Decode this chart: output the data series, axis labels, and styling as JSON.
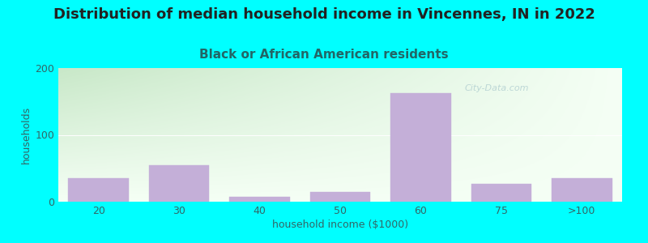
{
  "title": "Distribution of median household income in Vincennes, IN in 2022",
  "subtitle": "Black or African American residents",
  "xlabel": "household income ($1000)",
  "ylabel": "households",
  "background_color": "#00FFFF",
  "bar_color": "#c4afd8",
  "bar_edge_color": "#c4afd8",
  "categories": [
    "20",
    "30",
    "40",
    "50",
    "60",
    "75",
    ">100"
  ],
  "values": [
    35,
    55,
    7,
    14,
    162,
    27,
    35
  ],
  "bar_positions": [
    0,
    1,
    2,
    3,
    4,
    5,
    6
  ],
  "ylim": [
    0,
    200
  ],
  "yticks": [
    0,
    100,
    200
  ],
  "title_fontsize": 13,
  "subtitle_fontsize": 11,
  "label_fontsize": 9,
  "tick_color": "#336666",
  "title_color": "#222222",
  "subtitle_color": "#226666",
  "axis_label_color": "#336666",
  "watermark_text": "City-Data.com",
  "gradient_top_left": "#c8e8c8",
  "gradient_bottom_right": "#f5fff5",
  "grid_color": "#e0ece0"
}
